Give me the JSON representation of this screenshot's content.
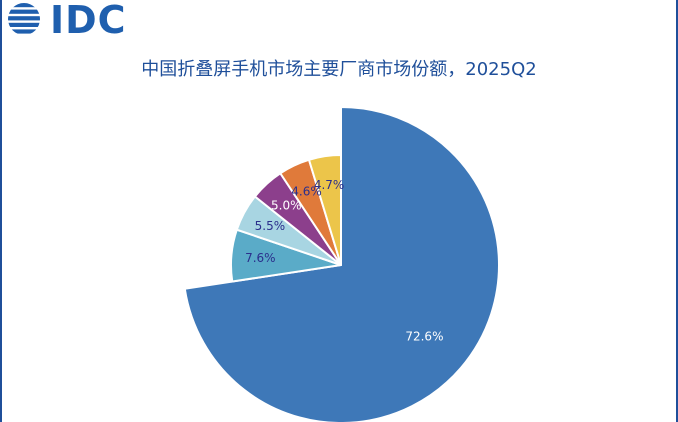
{
  "logo": {
    "text": "IDC"
  },
  "chart_data": {
    "type": "pie",
    "title": "中国折叠屏手机市场主要厂商市场份额，2025Q2",
    "slices": [
      {
        "value": 72.6,
        "label": "72.6%",
        "color": "#3e78b8"
      },
      {
        "value": 7.6,
        "label": "7.6%",
        "color": "#5aabc8"
      },
      {
        "value": 5.5,
        "label": "5.5%",
        "color": "#a8d5e2"
      },
      {
        "value": 5.0,
        "label": "5.0%",
        "color": "#8c3f8c"
      },
      {
        "value": 4.6,
        "label": "4.6%",
        "color": "#e07a3a"
      },
      {
        "value": 4.7,
        "label": "4.7%",
        "color": "#ecc54a"
      }
    ],
    "order": "clockwise from 12 o'clock, largest first; last slice ends at 12 o'clock",
    "label_colors": {
      "light": "#ffffff",
      "dark": "#2b2f8c"
    }
  }
}
